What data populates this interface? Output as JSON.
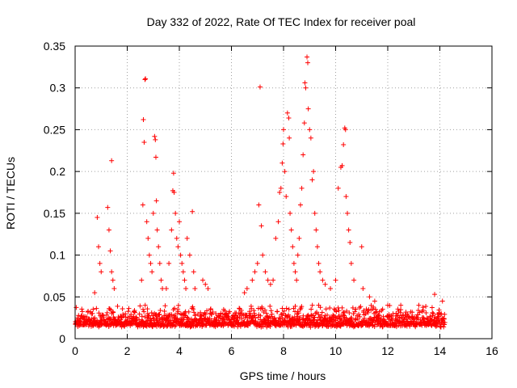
{
  "chart_data": {
    "type": "scatter",
    "title": "Day 332 of 2022, Rate Of TEC Index for receiver poal",
    "xlabel": "GPS time / hours",
    "ylabel": "ROTI / TECUs",
    "xlim": [
      0,
      16
    ],
    "ylim": [
      0,
      0.35
    ],
    "xticks": [
      0,
      2,
      4,
      6,
      8,
      10,
      12,
      14,
      16
    ],
    "yticks": [
      0,
      0.05,
      0.1,
      0.15,
      0.2,
      0.25,
      0.3,
      0.35
    ],
    "xtick_labels": [
      "0",
      "2",
      "4",
      "6",
      "8",
      "10",
      "12",
      "14",
      "16"
    ],
    "ytick_labels": [
      "0",
      "0.05",
      "0.1",
      "0.15",
      "0.2",
      "0.25",
      "0.3",
      "0.35"
    ],
    "grid": true,
    "marker": "+",
    "color": "#ff0000",
    "baseline": {
      "x_range": [
        0.0,
        14.2
      ],
      "y_range": [
        0.005,
        0.04
      ],
      "note": "dense band of points along the bottom"
    },
    "series": [
      {
        "name": "ROTI",
        "points": [
          [
            0.85,
            0.145
          ],
          [
            0.9,
            0.11
          ],
          [
            0.95,
            0.09
          ],
          [
            1.0,
            0.08
          ],
          [
            0.75,
            0.055
          ],
          [
            1.25,
            0.157
          ],
          [
            1.3,
            0.13
          ],
          [
            1.35,
            0.105
          ],
          [
            1.4,
            0.08
          ],
          [
            1.45,
            0.07
          ],
          [
            1.4,
            0.213
          ],
          [
            1.5,
            0.06
          ],
          [
            2.55,
            0.07
          ],
          [
            2.6,
            0.16
          ],
          [
            2.62,
            0.262
          ],
          [
            2.65,
            0.235
          ],
          [
            2.7,
            0.311
          ],
          [
            2.68,
            0.31
          ],
          [
            2.75,
            0.14
          ],
          [
            2.8,
            0.12
          ],
          [
            2.85,
            0.1
          ],
          [
            2.9,
            0.09
          ],
          [
            2.95,
            0.08
          ],
          [
            3.0,
            0.15
          ],
          [
            3.05,
            0.242
          ],
          [
            3.08,
            0.238
          ],
          [
            3.1,
            0.217
          ],
          [
            3.12,
            0.165
          ],
          [
            3.15,
            0.13
          ],
          [
            3.2,
            0.11
          ],
          [
            3.25,
            0.09
          ],
          [
            3.3,
            0.07
          ],
          [
            3.35,
            0.06
          ],
          [
            3.5,
            0.06
          ],
          [
            3.6,
            0.09
          ],
          [
            3.7,
            0.13
          ],
          [
            3.75,
            0.177
          ],
          [
            3.78,
            0.198
          ],
          [
            3.8,
            0.175
          ],
          [
            3.85,
            0.15
          ],
          [
            3.9,
            0.12
          ],
          [
            3.95,
            0.11
          ],
          [
            4.0,
            0.14
          ],
          [
            4.05,
            0.1
          ],
          [
            4.1,
            0.09
          ],
          [
            4.15,
            0.08
          ],
          [
            4.2,
            0.07
          ],
          [
            4.25,
            0.06
          ],
          [
            4.3,
            0.12
          ],
          [
            4.4,
            0.1
          ],
          [
            4.5,
            0.152
          ],
          [
            4.55,
            0.08
          ],
          [
            4.6,
            0.06
          ],
          [
            4.9,
            0.07
          ],
          [
            5.0,
            0.065
          ],
          [
            5.1,
            0.06
          ],
          [
            6.5,
            0.055
          ],
          [
            6.6,
            0.06
          ],
          [
            6.8,
            0.07
          ],
          [
            6.9,
            0.08
          ],
          [
            7.0,
            0.09
          ],
          [
            7.05,
            0.16
          ],
          [
            7.1,
            0.301
          ],
          [
            7.15,
            0.135
          ],
          [
            7.2,
            0.1
          ],
          [
            7.3,
            0.08
          ],
          [
            7.4,
            0.07
          ],
          [
            7.5,
            0.065
          ],
          [
            7.6,
            0.07
          ],
          [
            7.7,
            0.12
          ],
          [
            7.8,
            0.14
          ],
          [
            7.85,
            0.175
          ],
          [
            7.9,
            0.18
          ],
          [
            7.95,
            0.21
          ],
          [
            7.98,
            0.233
          ],
          [
            8.0,
            0.25
          ],
          [
            8.05,
            0.2
          ],
          [
            8.1,
            0.17
          ],
          [
            8.15,
            0.27
          ],
          [
            8.2,
            0.264
          ],
          [
            8.22,
            0.24
          ],
          [
            8.25,
            0.15
          ],
          [
            8.3,
            0.13
          ],
          [
            8.35,
            0.11
          ],
          [
            8.4,
            0.09
          ],
          [
            8.45,
            0.08
          ],
          [
            8.5,
            0.07
          ],
          [
            8.55,
            0.1
          ],
          [
            8.6,
            0.12
          ],
          [
            8.65,
            0.16
          ],
          [
            8.7,
            0.18
          ],
          [
            8.75,
            0.22
          ],
          [
            8.8,
            0.258
          ],
          [
            8.82,
            0.306
          ],
          [
            8.85,
            0.3
          ],
          [
            8.9,
            0.337
          ],
          [
            8.93,
            0.33
          ],
          [
            8.95,
            0.275
          ],
          [
            9.0,
            0.25
          ],
          [
            9.05,
            0.24
          ],
          [
            9.1,
            0.19
          ],
          [
            9.15,
            0.2
          ],
          [
            9.2,
            0.15
          ],
          [
            9.25,
            0.13
          ],
          [
            9.3,
            0.11
          ],
          [
            9.35,
            0.09
          ],
          [
            9.4,
            0.08
          ],
          [
            9.5,
            0.07
          ],
          [
            9.6,
            0.065
          ],
          [
            9.8,
            0.06
          ],
          [
            10.0,
            0.07
          ],
          [
            10.1,
            0.18
          ],
          [
            10.2,
            0.205
          ],
          [
            10.25,
            0.207
          ],
          [
            10.3,
            0.232
          ],
          [
            10.35,
            0.252
          ],
          [
            10.38,
            0.25
          ],
          [
            10.4,
            0.17
          ],
          [
            10.45,
            0.15
          ],
          [
            10.5,
            0.13
          ],
          [
            10.55,
            0.115
          ],
          [
            10.6,
            0.09
          ],
          [
            10.7,
            0.07
          ],
          [
            11.0,
            0.11
          ],
          [
            11.05,
            0.06
          ],
          [
            11.3,
            0.05
          ],
          [
            11.5,
            0.045
          ],
          [
            12.0,
            0.04
          ],
          [
            12.5,
            0.04
          ],
          [
            13.8,
            0.053
          ],
          [
            14.1,
            0.045
          ]
        ]
      }
    ]
  }
}
